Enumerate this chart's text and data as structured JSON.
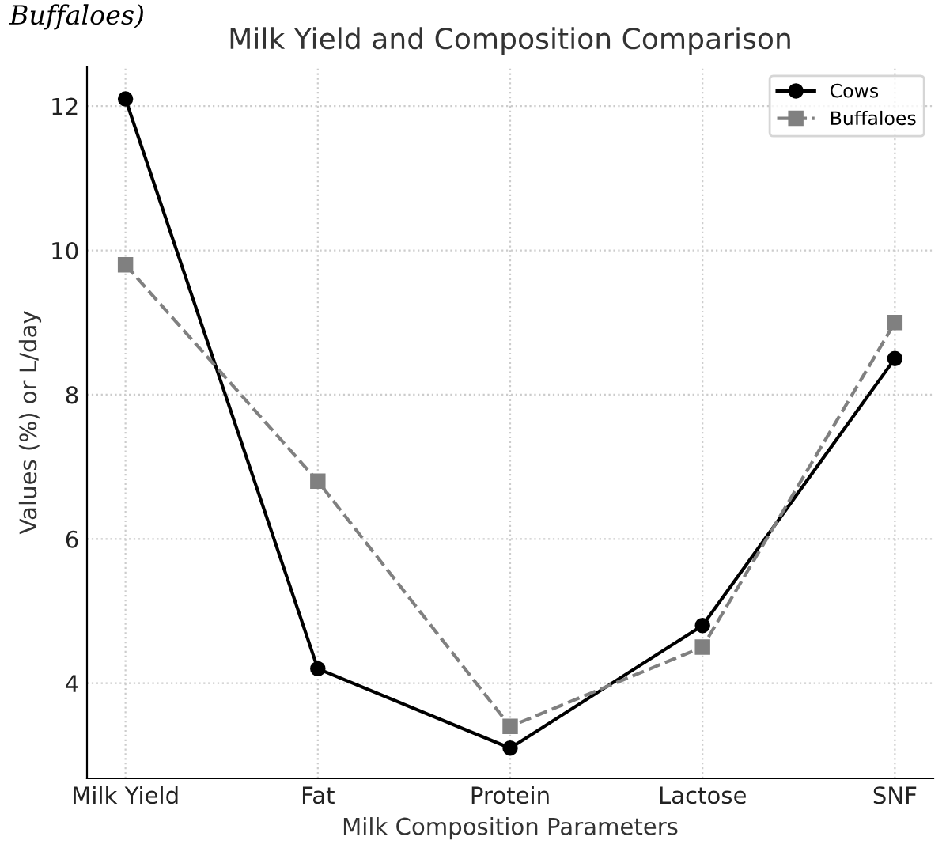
{
  "chart_data": {
    "type": "line",
    "title": "Milk Yield and Composition Comparison",
    "xlabel": "Milk Composition Parameters",
    "ylabel": "Values (%) or L/day",
    "annotations": [
      "Buffaloes)"
    ],
    "categories": [
      "Milk Yield",
      "Fat",
      "Protein",
      "Lactose",
      "SNF"
    ],
    "series": [
      {
        "name": "Cows",
        "color": "#000000",
        "values": [
          12.1,
          4.2,
          3.1,
          4.8,
          8.5
        ],
        "marker": "circle",
        "line_style": "solid"
      },
      {
        "name": "Buffaloes",
        "color": "#808080",
        "values": [
          9.8,
          6.8,
          3.4,
          4.5,
          9.0
        ],
        "marker": "square",
        "line_style": "dashed"
      }
    ],
    "ylim": [
      2.68,
      12.55
    ],
    "yticks": [
      4,
      6,
      8,
      10,
      12
    ],
    "grid": true,
    "legend": "top right"
  }
}
